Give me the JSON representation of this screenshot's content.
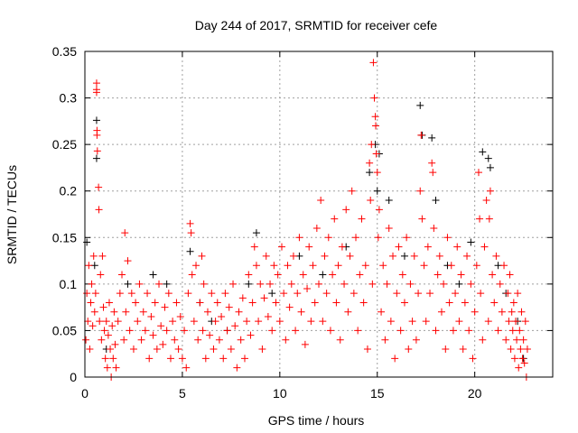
{
  "chart_data": {
    "type": "scatter",
    "title": "Day 244 of 2017, SRMTID for receiver cefe",
    "xlabel": "GPS time / hours",
    "ylabel": "SRMTID / TECUs",
    "xlim": [
      0,
      24
    ],
    "ylim": [
      0,
      0.35
    ],
    "xticks": [
      0,
      5,
      10,
      15,
      20
    ],
    "xtick_labels": [
      "0",
      "5",
      "10",
      "15",
      "20"
    ],
    "yticks": [
      0,
      0.05,
      0.1,
      0.15,
      0.2,
      0.25,
      0.3,
      0.35
    ],
    "ytick_labels": [
      "0",
      "0.05",
      "0.1",
      "0.15",
      "0.2",
      "0.25",
      "0.3",
      "0.35"
    ],
    "grid": true,
    "marker": "plus",
    "series": [
      {
        "name": "black",
        "color": "#000000",
        "points": [
          [
            0.1,
            0.145
          ],
          [
            0.5,
            0.12
          ],
          [
            0.6,
            0.276
          ],
          [
            0.6,
            0.235
          ],
          [
            1.1,
            0.03
          ],
          [
            2.2,
            0.1
          ],
          [
            3.5,
            0.11
          ],
          [
            4.2,
            0.1
          ],
          [
            5.4,
            0.135
          ],
          [
            5.9,
            0.08
          ],
          [
            6.5,
            0.06
          ],
          [
            7.3,
            0.05
          ],
          [
            8.4,
            0.1
          ],
          [
            8.8,
            0.155
          ],
          [
            9.6,
            0.09
          ],
          [
            11.0,
            0.13
          ],
          [
            12.2,
            0.11
          ],
          [
            13.4,
            0.14
          ],
          [
            14.6,
            0.22
          ],
          [
            14.9,
            0.25
          ],
          [
            15.0,
            0.2
          ],
          [
            15.1,
            0.24
          ],
          [
            15.6,
            0.19
          ],
          [
            16.4,
            0.13
          ],
          [
            17.2,
            0.292
          ],
          [
            17.3,
            0.26
          ],
          [
            17.8,
            0.257
          ],
          [
            18.0,
            0.19
          ],
          [
            18.6,
            0.12
          ],
          [
            19.2,
            0.1
          ],
          [
            19.8,
            0.145
          ],
          [
            20.4,
            0.242
          ],
          [
            20.7,
            0.235
          ],
          [
            20.8,
            0.225
          ],
          [
            21.2,
            0.12
          ],
          [
            21.6,
            0.09
          ],
          [
            22.2,
            0.06
          ],
          [
            22.5,
            0.02
          ]
        ]
      },
      {
        "name": "red",
        "color": "#ff0000",
        "points": [
          [
            0.05,
            0.04
          ],
          [
            0.1,
            0.09
          ],
          [
            0.15,
            0.06
          ],
          [
            0.2,
            0.12
          ],
          [
            0.25,
            0.03
          ],
          [
            0.3,
            0.08
          ],
          [
            0.35,
            0.1
          ],
          [
            0.4,
            0.055
          ],
          [
            0.45,
            0.13
          ],
          [
            0.5,
            0.07
          ],
          [
            0.55,
            0.09
          ],
          [
            0.6,
            0.316
          ],
          [
            0.6,
            0.309
          ],
          [
            0.6,
            0.306
          ],
          [
            0.62,
            0.265
          ],
          [
            0.62,
            0.26
          ],
          [
            0.64,
            0.243
          ],
          [
            0.7,
            0.204
          ],
          [
            0.72,
            0.18
          ],
          [
            0.75,
            0.06
          ],
          [
            0.8,
            0.11
          ],
          [
            0.85,
            0.04
          ],
          [
            0.9,
            0.13
          ],
          [
            0.95,
            0.075
          ],
          [
            1.0,
            0.05
          ],
          [
            1.05,
            0.02
          ],
          [
            1.1,
            0.06
          ],
          [
            1.15,
            0.01
          ],
          [
            1.2,
            0.045
          ],
          [
            1.25,
            0.08
          ],
          [
            1.3,
            0.03
          ],
          [
            1.35,
            0.0
          ],
          [
            1.4,
            0.055
          ],
          [
            1.45,
            0.02
          ],
          [
            1.5,
            0.07
          ],
          [
            1.55,
            0.035
          ],
          [
            1.6,
            0.01
          ],
          [
            1.7,
            0.06
          ],
          [
            1.8,
            0.09
          ],
          [
            1.9,
            0.11
          ],
          [
            2.0,
            0.04
          ],
          [
            2.05,
            0.155
          ],
          [
            2.1,
            0.07
          ],
          [
            2.2,
            0.125
          ],
          [
            2.3,
            0.05
          ],
          [
            2.4,
            0.09
          ],
          [
            2.5,
            0.03
          ],
          [
            2.6,
            0.08
          ],
          [
            2.7,
            0.06
          ],
          [
            2.8,
            0.1
          ],
          [
            2.9,
            0.04
          ],
          [
            3.0,
            0.07
          ],
          [
            3.1,
            0.05
          ],
          [
            3.2,
            0.09
          ],
          [
            3.3,
            0.02
          ],
          [
            3.4,
            0.065
          ],
          [
            3.5,
            0.045
          ],
          [
            3.6,
            0.08
          ],
          [
            3.7,
            0.03
          ],
          [
            3.8,
            0.1
          ],
          [
            3.9,
            0.055
          ],
          [
            4.0,
            0.035
          ],
          [
            4.1,
            0.075
          ],
          [
            4.2,
            0.05
          ],
          [
            4.3,
            0.09
          ],
          [
            4.4,
            0.02
          ],
          [
            4.5,
            0.06
          ],
          [
            4.6,
            0.04
          ],
          [
            4.7,
            0.08
          ],
          [
            4.8,
            0.03
          ],
          [
            4.9,
            0.065
          ],
          [
            5.0,
            0.02
          ],
          [
            5.1,
            0.05
          ],
          [
            5.2,
            0.01
          ],
          [
            5.3,
            0.09
          ],
          [
            5.4,
            0.165
          ],
          [
            5.45,
            0.155
          ],
          [
            5.5,
            0.11
          ],
          [
            5.6,
            0.06
          ],
          [
            5.7,
            0.12
          ],
          [
            5.8,
            0.04
          ],
          [
            5.9,
            0.08
          ],
          [
            6.0,
            0.13
          ],
          [
            6.05,
            0.05
          ],
          [
            6.1,
            0.1
          ],
          [
            6.2,
            0.02
          ],
          [
            6.3,
            0.07
          ],
          [
            6.4,
            0.045
          ],
          [
            6.5,
            0.09
          ],
          [
            6.6,
            0.03
          ],
          [
            6.7,
            0.06
          ],
          [
            6.8,
            0.08
          ],
          [
            6.9,
            0.04
          ],
          [
            7.0,
            0.065
          ],
          [
            7.1,
            0.02
          ],
          [
            7.2,
            0.09
          ],
          [
            7.3,
            0.05
          ],
          [
            7.4,
            0.075
          ],
          [
            7.5,
            0.03
          ],
          [
            7.6,
            0.1
          ],
          [
            7.7,
            0.055
          ],
          [
            7.8,
            0.01
          ],
          [
            7.9,
            0.07
          ],
          [
            8.0,
            0.04
          ],
          [
            8.1,
            0.085
          ],
          [
            8.2,
            0.02
          ],
          [
            8.3,
            0.06
          ],
          [
            8.4,
            0.11
          ],
          [
            8.5,
            0.045
          ],
          [
            8.6,
            0.08
          ],
          [
            8.7,
            0.14
          ],
          [
            8.8,
            0.12
          ],
          [
            8.9,
            0.06
          ],
          [
            9.0,
            0.1
          ],
          [
            9.1,
            0.03
          ],
          [
            9.2,
            0.085
          ],
          [
            9.3,
            0.13
          ],
          [
            9.4,
            0.065
          ],
          [
            9.5,
            0.1
          ],
          [
            9.6,
            0.05
          ],
          [
            9.7,
            0.12
          ],
          [
            9.8,
            0.08
          ],
          [
            9.9,
            0.11
          ],
          [
            10.0,
            0.06
          ],
          [
            10.1,
            0.14
          ],
          [
            10.2,
            0.09
          ],
          [
            10.3,
            0.04
          ],
          [
            10.4,
            0.12
          ],
          [
            10.5,
            0.075
          ],
          [
            10.6,
            0.1
          ],
          [
            10.7,
            0.13
          ],
          [
            10.8,
            0.05
          ],
          [
            10.9,
            0.09
          ],
          [
            11.0,
            0.15
          ],
          [
            11.1,
            0.07
          ],
          [
            11.2,
            0.11
          ],
          [
            11.3,
            0.035
          ],
          [
            11.4,
            0.095
          ],
          [
            11.5,
            0.14
          ],
          [
            11.6,
            0.06
          ],
          [
            11.7,
            0.12
          ],
          [
            11.8,
            0.08
          ],
          [
            11.9,
            0.16
          ],
          [
            12.0,
            0.1
          ],
          [
            12.1,
            0.19
          ],
          [
            12.2,
            0.06
          ],
          [
            12.3,
            0.13
          ],
          [
            12.4,
            0.09
          ],
          [
            12.5,
            0.15
          ],
          [
            12.6,
            0.05
          ],
          [
            12.7,
            0.11
          ],
          [
            12.8,
            0.17
          ],
          [
            12.9,
            0.08
          ],
          [
            13.0,
            0.12
          ],
          [
            13.1,
            0.04
          ],
          [
            13.2,
            0.14
          ],
          [
            13.3,
            0.1
          ],
          [
            13.4,
            0.18
          ],
          [
            13.5,
            0.07
          ],
          [
            13.6,
            0.13
          ],
          [
            13.7,
            0.2
          ],
          [
            13.8,
            0.09
          ],
          [
            13.9,
            0.15
          ],
          [
            14.0,
            0.05
          ],
          [
            14.1,
            0.11
          ],
          [
            14.2,
            0.17
          ],
          [
            14.3,
            0.08
          ],
          [
            14.4,
            0.12
          ],
          [
            14.5,
            0.03
          ],
          [
            14.6,
            0.23
          ],
          [
            14.65,
            0.19
          ],
          [
            14.7,
            0.25
          ],
          [
            14.75,
            0.1
          ],
          [
            14.8,
            0.338
          ],
          [
            14.85,
            0.3
          ],
          [
            14.9,
            0.28
          ],
          [
            14.92,
            0.27
          ],
          [
            14.95,
            0.24
          ],
          [
            15.0,
            0.22
          ],
          [
            15.05,
            0.15
          ],
          [
            15.1,
            0.18
          ],
          [
            15.2,
            0.07
          ],
          [
            15.3,
            0.12
          ],
          [
            15.4,
            0.04
          ],
          [
            15.5,
            0.1
          ],
          [
            15.6,
            0.16
          ],
          [
            15.7,
            0.06
          ],
          [
            15.8,
            0.13
          ],
          [
            15.9,
            0.02
          ],
          [
            16.0,
            0.09
          ],
          [
            16.1,
            0.14
          ],
          [
            16.2,
            0.05
          ],
          [
            16.3,
            0.11
          ],
          [
            16.4,
            0.08
          ],
          [
            16.5,
            0.15
          ],
          [
            16.6,
            0.03
          ],
          [
            16.7,
            0.1
          ],
          [
            16.8,
            0.06
          ],
          [
            16.9,
            0.13
          ],
          [
            17.0,
            0.04
          ],
          [
            17.1,
            0.09
          ],
          [
            17.2,
            0.2
          ],
          [
            17.25,
            0.26
          ],
          [
            17.3,
            0.17
          ],
          [
            17.4,
            0.12
          ],
          [
            17.5,
            0.06
          ],
          [
            17.6,
            0.14
          ],
          [
            17.7,
            0.09
          ],
          [
            17.8,
            0.23
          ],
          [
            17.85,
            0.22
          ],
          [
            17.9,
            0.16
          ],
          [
            18.0,
            0.05
          ],
          [
            18.1,
            0.11
          ],
          [
            18.2,
            0.13
          ],
          [
            18.3,
            0.07
          ],
          [
            18.4,
            0.1
          ],
          [
            18.5,
            0.03
          ],
          [
            18.6,
            0.15
          ],
          [
            18.7,
            0.08
          ],
          [
            18.8,
            0.12
          ],
          [
            18.9,
            0.05
          ],
          [
            19.0,
            0.09
          ],
          [
            19.1,
            0.14
          ],
          [
            19.2,
            0.06
          ],
          [
            19.3,
            0.11
          ],
          [
            19.4,
            0.03
          ],
          [
            19.5,
            0.08
          ],
          [
            19.6,
            0.13
          ],
          [
            19.7,
            0.05
          ],
          [
            19.8,
            0.1
          ],
          [
            19.9,
            0.02
          ],
          [
            20.0,
            0.07
          ],
          [
            20.1,
            0.12
          ],
          [
            20.2,
            0.22
          ],
          [
            20.25,
            0.17
          ],
          [
            20.3,
            0.09
          ],
          [
            20.4,
            0.04
          ],
          [
            20.5,
            0.14
          ],
          [
            20.6,
            0.19
          ],
          [
            20.7,
            0.06
          ],
          [
            20.75,
            0.17
          ],
          [
            20.8,
            0.2
          ],
          [
            20.9,
            0.11
          ],
          [
            21.0,
            0.08
          ],
          [
            21.1,
            0.13
          ],
          [
            21.2,
            0.05
          ],
          [
            21.3,
            0.1
          ],
          [
            21.4,
            0.07
          ],
          [
            21.5,
            0.12
          ],
          [
            21.6,
            0.04
          ],
          [
            21.7,
            0.09
          ],
          [
            21.75,
            0.06
          ],
          [
            21.8,
            0.11
          ],
          [
            21.85,
            0.03
          ],
          [
            21.9,
            0.07
          ],
          [
            21.95,
            0.05
          ],
          [
            22.0,
            0.08
          ],
          [
            22.05,
            0.02
          ],
          [
            22.1,
            0.06
          ],
          [
            22.15,
            0.04
          ],
          [
            22.2,
            0.09
          ],
          [
            22.25,
            0.01
          ],
          [
            22.3,
            0.05
          ],
          [
            22.35,
            0.03
          ],
          [
            22.4,
            0.07
          ],
          [
            22.45,
            0.02
          ],
          [
            22.5,
            0.04
          ],
          [
            22.55,
            0.015
          ],
          [
            22.6,
            0.06
          ],
          [
            22.65,
            0.0
          ],
          [
            22.7,
            0.03
          ]
        ]
      }
    ]
  }
}
